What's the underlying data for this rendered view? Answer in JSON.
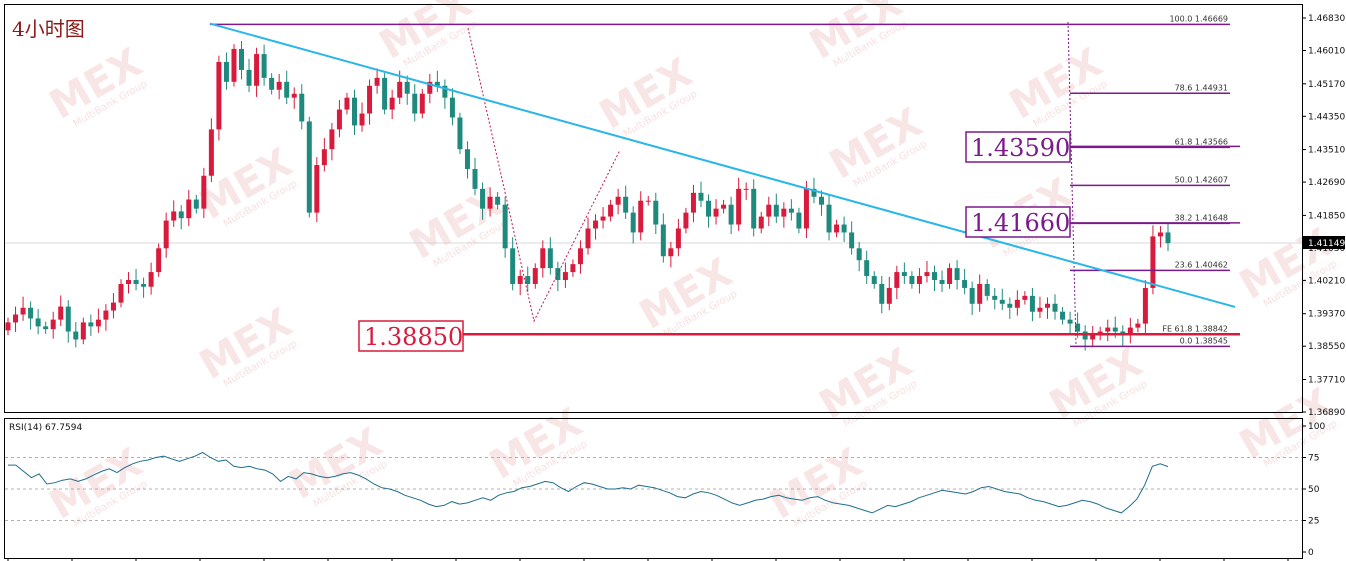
{
  "chart_data": {
    "type": "candlestick",
    "title": "4小时图",
    "price_axis": {
      "ylim": [
        1.3689,
        1.4683
      ],
      "ticks": [
        "1.46830",
        "1.46010",
        "1.45170",
        "1.44350",
        "1.43510",
        "1.42690",
        "1.41850",
        "1.41030",
        "1.40210",
        "1.39370",
        "1.38550",
        "1.37710",
        "1.36890"
      ],
      "current_price": "1.41149"
    },
    "candles_close": [
      1.3915,
      1.3935,
      1.3952,
      1.3925,
      1.3905,
      1.3898,
      1.3922,
      1.3955,
      1.3892,
      1.3872,
      1.3915,
      1.3905,
      1.3922,
      1.3945,
      1.3965,
      1.4012,
      1.4022,
      1.4012,
      1.4005,
      1.4042,
      1.4102,
      1.4172,
      1.4195,
      1.4178,
      1.4225,
      1.4202,
      1.4285,
      1.4402,
      1.4572,
      1.4522,
      1.4605,
      1.4552,
      1.4512,
      1.4592,
      1.4532,
      1.4502,
      1.4522,
      1.4482,
      1.4492,
      1.4422,
      1.4192,
      1.4312,
      1.4352,
      1.4402,
      1.4452,
      1.4482,
      1.4412,
      1.4442,
      1.4512,
      1.4532,
      1.4452,
      1.4482,
      1.4522,
      1.4492,
      1.4442,
      1.4492,
      1.4522,
      1.4512,
      1.4482,
      1.4432,
      1.4352,
      1.4302,
      1.4252,
      1.4202,
      1.4232,
      1.4212,
      1.4102,
      1.4012,
      1.4032,
      1.4012,
      1.4052,
      1.4102,
      1.4052,
      1.4022,
      1.4042,
      1.4062,
      1.4102,
      1.4152,
      1.4172,
      1.4182,
      1.4212,
      1.4232,
      1.4192,
      1.4142,
      1.4222,
      1.4222,
      1.4162,
      1.4082,
      1.4102,
      1.4152,
      1.4192,
      1.4242,
      1.4222,
      1.4182,
      1.4202,
      1.4212,
      1.4162,
      1.4252,
      1.4252,
      1.4152,
      1.4182,
      1.4212,
      1.4182,
      1.4202,
      1.4192,
      1.4152,
      1.4252,
      1.4232,
      1.4212,
      1.4142,
      1.4162,
      1.4142,
      1.4102,
      1.4072,
      1.4032,
      1.4012,
      1.3962,
      1.4002,
      1.4042,
      1.4032,
      1.4012,
      1.4032,
      1.4042,
      1.4022,
      1.4012,
      1.4052,
      1.4022,
      1.4002,
      1.3962,
      1.4012,
      1.3982,
      1.3972,
      1.3962,
      1.3952,
      1.3972,
      1.3982,
      1.3942,
      1.3952,
      1.3962,
      1.3942,
      1.3922,
      1.3912,
      1.3892,
      1.3872,
      1.3882,
      1.3892,
      1.3902,
      1.3892,
      1.3882,
      1.3902,
      1.3912,
      1.4002,
      1.4132,
      1.4142,
      1.4115
    ],
    "horizontal_levels": [
      {
        "price": 1.3885,
        "label": "1.38850",
        "color": "#d81b3c"
      },
      {
        "price": 1.4166,
        "label": "1.41660",
        "color": "#7b1a8c"
      },
      {
        "price": 1.4359,
        "label": "1.43590",
        "color": "#7b1a8c"
      }
    ],
    "fibonacci_levels": [
      {
        "label": "100.0 1.46669",
        "price": 1.46669
      },
      {
        "label": "78.6 1.44931",
        "price": 1.44931
      },
      {
        "label": "61.8 1.43566",
        "price": 1.43566
      },
      {
        "label": "50.0 1.42607",
        "price": 1.42607
      },
      {
        "label": "38.2 1.41648",
        "price": 1.41648
      },
      {
        "label": "23.6 1.40462",
        "price": 1.40462
      },
      {
        "label": "FE 61.8 1.38842",
        "price": 1.38842
      },
      {
        "label": "0.0 1.38545",
        "price": 1.38545
      }
    ],
    "trendline": {
      "from": 1.4669,
      "to": 1.3954,
      "color": "#29b6e8"
    },
    "rsi": {
      "label": "RSI(14) 67.7594",
      "ylim": [
        0,
        100
      ],
      "ticks": [
        "100",
        "75",
        "50",
        "25",
        "0"
      ],
      "levels": [
        75,
        50,
        25
      ],
      "values": [
        69,
        69,
        64,
        59,
        62,
        54,
        55,
        57,
        58,
        56,
        58,
        61,
        64,
        66,
        63,
        67,
        70,
        72,
        73,
        75,
        76,
        74,
        72,
        74,
        76,
        79,
        75,
        72,
        73,
        68,
        67,
        68,
        66,
        65,
        62,
        56,
        60,
        58,
        63,
        62,
        60,
        59,
        60,
        62,
        63,
        61,
        58,
        54,
        51,
        50,
        48,
        45,
        43,
        41,
        38,
        36,
        37,
        40,
        38,
        39,
        41,
        43,
        41,
        45,
        47,
        48,
        51,
        52,
        54,
        56,
        55,
        51,
        48,
        52,
        55,
        54,
        52,
        50,
        50,
        51,
        50,
        53,
        52,
        51,
        49,
        47,
        44,
        43,
        46,
        48,
        47,
        45,
        42,
        39,
        37,
        39,
        41,
        42,
        44,
        45,
        43,
        42,
        41,
        43,
        44,
        41,
        39,
        38,
        37,
        35,
        33,
        31,
        34,
        37,
        36,
        38,
        40,
        43,
        45,
        47,
        49,
        48,
        47,
        46,
        48,
        51,
        52,
        50,
        48,
        47,
        46,
        43,
        41,
        40,
        38,
        36,
        37,
        39,
        41,
        40,
        38,
        35,
        33,
        31,
        36,
        42,
        53,
        68,
        70,
        67.76
      ]
    }
  },
  "watermark": {
    "brand": "MEX",
    "sub": "MultiBank Group"
  }
}
